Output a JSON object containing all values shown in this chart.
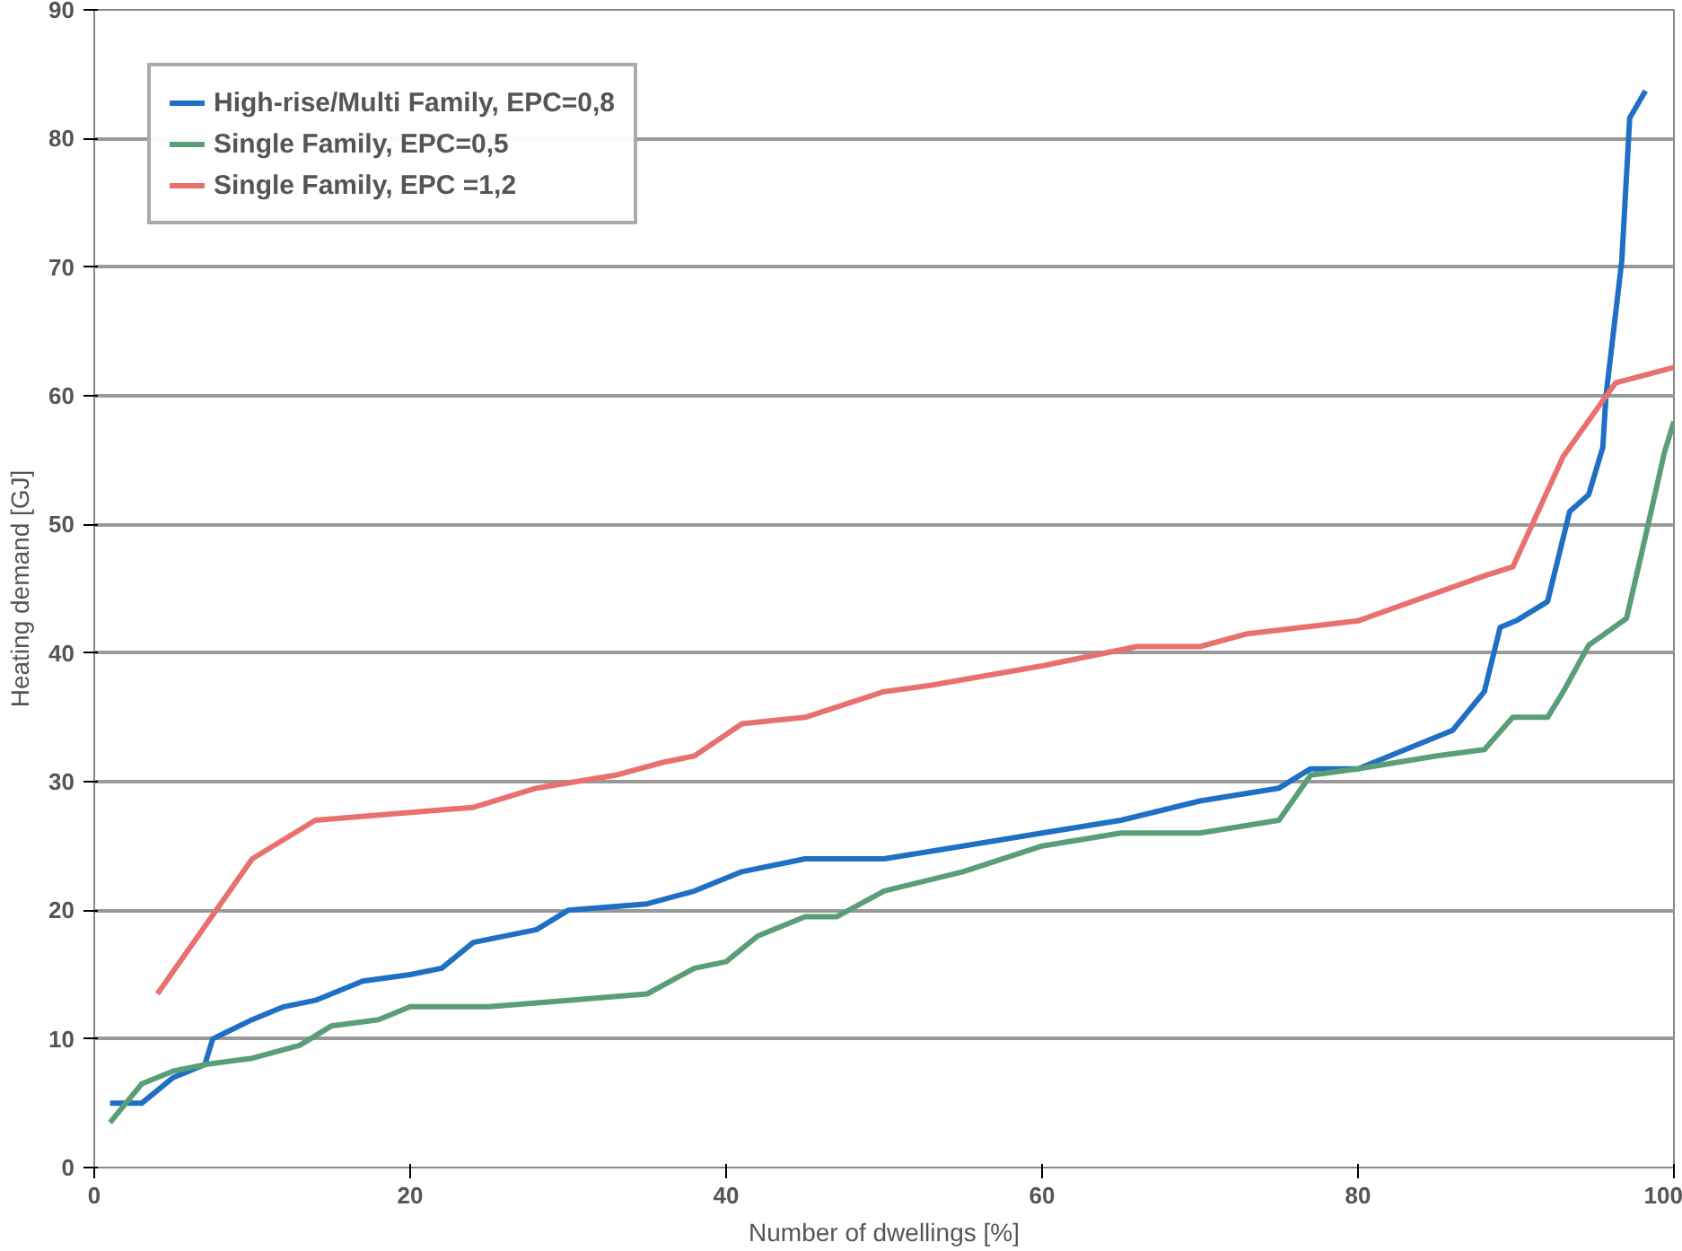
{
  "chart_data": {
    "type": "line",
    "xlabel": "Number of dwellings [%]",
    "ylabel": "Heating demand [GJ]",
    "xlim": [
      0,
      100
    ],
    "ylim": [
      0,
      90
    ],
    "xticks": [
      0,
      20,
      40,
      60,
      80,
      100
    ],
    "yticks": [
      0,
      10,
      20,
      30,
      40,
      50,
      60,
      70,
      80,
      90
    ],
    "grid": "y",
    "legend": "top left",
    "marker": "none",
    "line_style": "solid",
    "series": [
      {
        "name": "High-rise/Multi Family, EPC=0,8",
        "color": "#1f6fc4",
        "x": [
          1,
          3,
          5,
          7,
          7.5,
          10,
          12,
          14,
          17,
          20,
          22,
          24,
          28,
          30,
          35,
          38,
          41,
          45,
          50,
          55,
          60,
          65,
          70,
          75,
          77,
          80,
          83,
          86,
          88,
          89,
          90,
          92,
          93.4,
          94.6,
          95.5,
          95.7,
          96.7,
          97.2,
          98.2
        ],
        "values": [
          5,
          5,
          7,
          8,
          10,
          11.5,
          12.5,
          13,
          14.5,
          15,
          15.5,
          17.5,
          18.5,
          20,
          20.5,
          21.5,
          23,
          24,
          24,
          25,
          26,
          27,
          28.5,
          29.5,
          31,
          31,
          32.5,
          34,
          37,
          42,
          42.5,
          44,
          51,
          52.3,
          56,
          60,
          70.5,
          81.6,
          83.7
        ]
      },
      {
        "name": "Single Family, EPC=0,5",
        "color": "#5a9e78",
        "x": [
          1,
          2,
          3,
          5,
          7,
          10,
          13,
          15,
          18,
          20,
          25,
          30,
          35,
          38,
          40,
          42,
          45,
          47,
          50,
          55,
          60,
          65,
          70,
          75,
          77,
          80,
          85,
          88,
          89.8,
          92,
          93,
          94.6,
          97,
          98,
          99.4,
          100
        ],
        "values": [
          3.5,
          5,
          6.5,
          7.5,
          8,
          8.5,
          9.5,
          11,
          11.5,
          12.5,
          12.5,
          13,
          13.5,
          15.5,
          16,
          18,
          19.5,
          19.5,
          21.5,
          23,
          25,
          26,
          26,
          27,
          30.5,
          31,
          32,
          32.5,
          35,
          35,
          37,
          40.6,
          42.7,
          48,
          55.6,
          58
        ]
      },
      {
        "name": "Single Family, EPC =1,2",
        "color": "#e8706f",
        "x": [
          4,
          10,
          14,
          24,
          28,
          33,
          36,
          38,
          41,
          45,
          50,
          53,
          60,
          66,
          70,
          73,
          80,
          88,
          89.8,
          93,
          96.3,
          100
        ],
        "values": [
          13.5,
          24,
          27,
          28,
          29.5,
          30.5,
          31.5,
          32,
          34.5,
          35,
          37,
          37.5,
          39,
          40.5,
          40.5,
          41.5,
          42.5,
          46,
          46.7,
          55.3,
          61,
          62.2
        ]
      }
    ]
  }
}
